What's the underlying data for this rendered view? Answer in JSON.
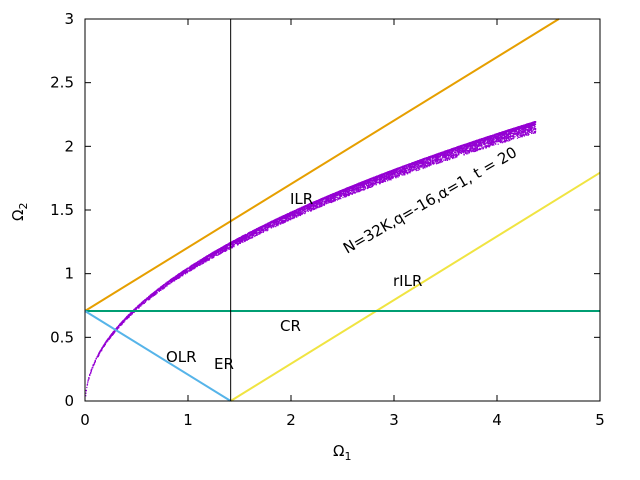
{
  "chart_data": {
    "type": "scatter",
    "xlabel": "Ω",
    "xlabel_sub": "1",
    "ylabel": "Ω",
    "ylabel_sub": "2",
    "xlim": [
      0,
      5
    ],
    "ylim": [
      0,
      3
    ],
    "xticks": [
      "0",
      "1",
      "2",
      "3",
      "4",
      "5"
    ],
    "yticks": [
      "0",
      "0.5",
      "1",
      "1.5",
      "2",
      "2.5",
      "3"
    ],
    "grid": false,
    "scatter": {
      "name": "N=32K,q=-16,α=1, t = 20",
      "color": "#9400d3",
      "x_range": [
        0,
        4.37
      ],
      "y_range": [
        0,
        2.2
      ]
    },
    "lines": [
      {
        "name": "ILR",
        "color": "#e69f00",
        "x": [
          0,
          4.6
        ],
        "y": [
          0.7071,
          3.0
        ]
      },
      {
        "name": "rILR",
        "color": "#f0e442",
        "x": [
          1.4142,
          5.0
        ],
        "y": [
          0.0,
          1.7929
        ]
      },
      {
        "name": "CR",
        "color": "#009e73",
        "x": [
          0,
          5.0
        ],
        "y": [
          0.7071,
          0.7071
        ]
      },
      {
        "name": "OLR",
        "color": "#56b4e9",
        "x": [
          0,
          1.4142
        ],
        "y": [
          0.7071,
          0.0
        ]
      },
      {
        "name": "ER",
        "color": "#000000",
        "x": [
          1.4142,
          1.4142
        ],
        "y": [
          0.0,
          3.0
        ]
      }
    ],
    "annotations": [
      "ILR",
      "rILR",
      "CR",
      "OLR",
      "ER",
      "N=32K,q=-16,α=1, t = 20"
    ]
  }
}
